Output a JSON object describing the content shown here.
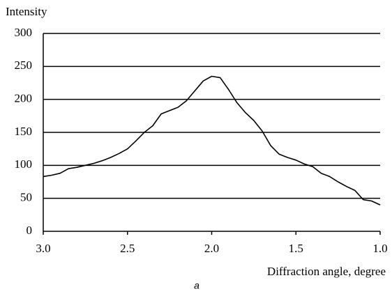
{
  "chart_data": {
    "type": "line",
    "x_label": "Diffraction angle, degree",
    "y_label": "Intensity",
    "annotation": "a",
    "x": [
      3.0,
      2.95,
      2.9,
      2.85,
      2.8,
      2.75,
      2.7,
      2.65,
      2.6,
      2.55,
      2.5,
      2.45,
      2.4,
      2.35,
      2.3,
      2.25,
      2.2,
      2.15,
      2.1,
      2.05,
      2.0,
      1.95,
      1.9,
      1.85,
      1.8,
      1.75,
      1.7,
      1.65,
      1.6,
      1.55,
      1.5,
      1.45,
      1.4,
      1.35,
      1.3,
      1.25,
      1.2,
      1.15,
      1.1,
      1.05,
      1.0
    ],
    "series": [
      {
        "color": "#000000",
        "values": [
          83,
          85,
          88,
          95,
          97,
          100,
          103,
          107,
          112,
          118,
          125,
          137,
          150,
          160,
          178,
          183,
          188,
          198,
          213,
          228,
          235,
          233,
          215,
          195,
          180,
          168,
          152,
          130,
          117,
          112,
          108,
          102,
          98,
          88,
          83,
          75,
          68,
          62,
          48,
          46,
          40
        ]
      }
    ],
    "xlim": [
      3.0,
      1.0
    ],
    "xticks": [
      {
        "value": 3,
        "label": "3.0"
      },
      2.5,
      {
        "value": 2,
        "label": "2.0"
      },
      1.5,
      {
        "value": 1,
        "label": "1.0"
      }
    ],
    "ylim": [
      0,
      300
    ],
    "yticks": [
      0,
      50,
      100,
      150,
      200,
      250,
      300
    ],
    "grid": true
  }
}
